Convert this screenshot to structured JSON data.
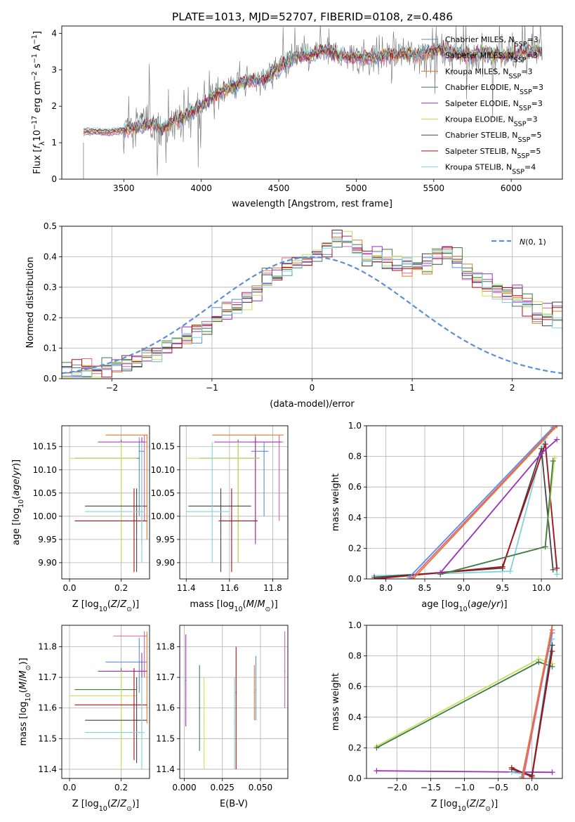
{
  "figure": {
    "title": "PLATE=1013, MJD=52707, FIBERID=0108, z=0.486"
  },
  "colors": {
    "chabrier_miles": "#5b8fd6",
    "salpeter_miles": "#e0609a",
    "kroupa_miles": "#e07a2a",
    "chabrier_elodie": "#3e7a4a",
    "salpeter_elodie": "#9b2fb8",
    "kroupa_elodie": "#c9e05a",
    "chabrier_stelib": "#444444",
    "salpeter_stelib": "#a8101a",
    "kroupa_stelib": "#7fd3dc",
    "data": "#808080",
    "normal": "#5b8fd6"
  },
  "chart_data": [
    {
      "id": "spectrum",
      "type": "line",
      "xlabel": "wavelength [Angstrom, rest frame]",
      "ylabel": "Flux [f_λ 10^-17 erg cm^-2 s^-1 A^-1]",
      "xlim": [
        3100,
        6330
      ],
      "ylim": [
        0,
        4.2
      ],
      "xticks": [
        3500,
        4000,
        4500,
        5000,
        5500,
        6000
      ],
      "yticks": [
        0,
        1,
        2,
        3,
        4
      ],
      "grid": false,
      "legend_position": "top-right",
      "legend": [
        {
          "label": "Chabrier MILES, N",
          "sub": "SSP",
          "tail": "=3",
          "color_key": "chabrier_miles"
        },
        {
          "label": "Salpeter MILES, N",
          "sub": "SSP",
          "tail": "=3",
          "color_key": "salpeter_miles"
        },
        {
          "label": "Kroupa MILES, N",
          "sub": "SSP",
          "tail": "=3",
          "color_key": "kroupa_miles"
        },
        {
          "label": "Chabrier ELODIE, N",
          "sub": "SSP",
          "tail": "=3",
          "color_key": "chabrier_elodie"
        },
        {
          "label": "Salpeter ELODIE, N",
          "sub": "SSP",
          "tail": "=3",
          "color_key": "salpeter_elodie"
        },
        {
          "label": "Kroupa ELODIE, N",
          "sub": "SSP",
          "tail": "=3",
          "color_key": "kroupa_elodie"
        },
        {
          "label": "Chabrier STELIB, N",
          "sub": "SSP",
          "tail": "=5",
          "color_key": "chabrier_stelib"
        },
        {
          "label": "Salpeter STELIB, N",
          "sub": "SSP",
          "tail": "=5",
          "color_key": "salpeter_stelib"
        },
        {
          "label": "Kroupa STELIB, N",
          "sub": "SSP",
          "tail": "=4",
          "color_key": "kroupa_stelib"
        }
      ],
      "model_trend": {
        "x": [
          3240,
          3300,
          3400,
          3500,
          3600,
          3700,
          3750,
          3800,
          3900,
          4000,
          4100,
          4200,
          4300,
          4400,
          4500,
          4600,
          4700,
          4800,
          4900,
          5000,
          5100,
          5200,
          5300,
          5400,
          5500,
          5600,
          5700,
          5800,
          5900,
          6000,
          6100,
          6200
        ],
        "y": [
          1.3,
          1.32,
          1.28,
          1.36,
          1.45,
          1.55,
          1.35,
          1.55,
          1.75,
          2.0,
          2.35,
          2.55,
          2.7,
          2.75,
          3.05,
          3.35,
          3.4,
          3.55,
          3.4,
          3.35,
          3.35,
          3.4,
          3.45,
          3.4,
          3.55,
          3.5,
          3.4,
          3.45,
          3.4,
          3.4,
          3.5,
          3.5
        ]
      }
    },
    {
      "id": "residuals",
      "type": "line",
      "xlabel": "(data-model)/error",
      "ylabel": "Normed distribution",
      "xlim": [
        -2.5,
        2.5
      ],
      "ylim": [
        0,
        0.5
      ],
      "xticks": [
        -2,
        -1,
        0,
        1,
        2
      ],
      "yticks": [
        0.0,
        0.1,
        0.2,
        0.3,
        0.4,
        0.5
      ],
      "grid": true,
      "legend_position": "top-right",
      "legend": [
        {
          "label": "N(0,1)",
          "color_key": "normal",
          "style": "dashed"
        }
      ],
      "bin_width": 0.1,
      "bin_start": -2.5,
      "histogram_envelope": [
        0.02,
        0.02,
        0.03,
        0.03,
        0.04,
        0.04,
        0.05,
        0.06,
        0.07,
        0.08,
        0.1,
        0.12,
        0.14,
        0.16,
        0.18,
        0.2,
        0.22,
        0.24,
        0.27,
        0.3,
        0.32,
        0.34,
        0.36,
        0.38,
        0.4,
        0.41,
        0.44,
        0.46,
        0.45,
        0.42,
        0.4,
        0.4,
        0.39,
        0.37,
        0.37,
        0.36,
        0.38,
        0.41,
        0.42,
        0.39,
        0.36,
        0.33,
        0.31,
        0.29,
        0.28,
        0.26,
        0.24,
        0.22,
        0.21,
        0.2,
        0.18,
        0.17,
        0.17,
        0.15,
        0.13,
        0.12,
        0.11,
        0.1,
        0.09,
        0.08,
        0.07,
        0.06,
        0.06,
        0.05,
        0.05,
        0.04,
        0.04,
        0.04,
        0.03,
        0.03
      ]
    },
    {
      "id": "age_vs_Z",
      "type": "scatter",
      "xlabel": "Z [log10(Z/Z⊙)]",
      "ylabel": "age  [log10(age/yr)]",
      "xlim": [
        -0.03,
        0.31
      ],
      "ylim": [
        9.865,
        10.195
      ],
      "xticks": [
        0.0,
        0.2
      ],
      "yticks": [
        9.9,
        9.95,
        10.0,
        10.05,
        10.1,
        10.15
      ],
      "grid": true,
      "points": [
        {
          "series": "chabrier_miles",
          "x": 0.27,
          "y": 10.14,
          "xerr": [
            0.27,
            0.29
          ],
          "yerr": [
            10.0,
            10.17
          ]
        },
        {
          "series": "salpeter_miles",
          "x": 0.29,
          "y": 10.16,
          "xerr": [
            0.28,
            0.3
          ],
          "yerr": [
            9.99,
            10.175
          ]
        },
        {
          "series": "kroupa_miles",
          "x": 0.3,
          "y": 10.175,
          "xerr": [
            0.14,
            0.3
          ],
          "yerr": [
            9.95,
            10.175
          ]
        },
        {
          "series": "chabrier_elodie",
          "x": 0.2,
          "y": 10.125,
          "xerr": [
            0.02,
            0.27
          ],
          "yerr": [
            9.9,
            10.165
          ]
        },
        {
          "series": "salpeter_elodie",
          "x": 0.28,
          "y": 10.16,
          "xerr": [
            0.11,
            0.29
          ],
          "yerr": [
            9.94,
            10.17
          ]
        },
        {
          "series": "kroupa_elodie",
          "x": 0.2,
          "y": 10.125,
          "xerr": [
            0.0,
            0.26
          ],
          "yerr": [
            9.9,
            10.16
          ]
        },
        {
          "series": "chabrier_stelib",
          "x": 0.26,
          "y": 10.022,
          "xerr": [
            0.06,
            0.3
          ],
          "yerr": [
            9.88,
            10.06
          ]
        },
        {
          "series": "salpeter_stelib",
          "x": 0.25,
          "y": 9.99,
          "xerr": [
            0.02,
            0.3
          ],
          "yerr": [
            9.88,
            10.06
          ]
        },
        {
          "series": "kroupa_stelib",
          "x": 0.28,
          "y": 10.01,
          "xerr": [
            0.06,
            0.29
          ],
          "yerr": [
            9.9,
            10.16
          ]
        }
      ]
    },
    {
      "id": "age_vs_mass",
      "type": "scatter",
      "xlabel": "mass [log10(M/M⊙)]",
      "ylabel": "",
      "xlim": [
        11.37,
        11.87
      ],
      "ylim": [
        9.865,
        10.195
      ],
      "xticks": [
        11.4,
        11.6,
        11.8
      ],
      "yticks": [
        9.9,
        9.95,
        10.0,
        10.05,
        10.1,
        10.15
      ],
      "grid": true,
      "points": [
        {
          "series": "chabrier_miles",
          "x": 11.76,
          "y": 10.14,
          "xerr": [
            11.7,
            11.78
          ],
          "yerr": [
            10.0,
            10.16
          ]
        },
        {
          "series": "salpeter_miles",
          "x": 11.83,
          "y": 10.16,
          "xerr": [
            11.7,
            11.85
          ],
          "yerr": [
            9.99,
            10.175
          ]
        },
        {
          "series": "kroupa_miles",
          "x": 11.72,
          "y": 10.175,
          "xerr": [
            11.52,
            11.85
          ],
          "yerr": [
            9.95,
            10.175
          ]
        },
        {
          "series": "chabrier_elodie",
          "x": 11.64,
          "y": 10.125,
          "xerr": [
            11.46,
            11.74
          ],
          "yerr": [
            9.9,
            10.165
          ]
        },
        {
          "series": "salpeter_elodie",
          "x": 11.72,
          "y": 10.16,
          "xerr": [
            11.53,
            11.84
          ],
          "yerr": [
            9.94,
            10.17
          ]
        },
        {
          "series": "kroupa_elodie",
          "x": 11.64,
          "y": 10.125,
          "xerr": [
            11.4,
            11.74
          ],
          "yerr": [
            9.9,
            10.16
          ]
        },
        {
          "series": "chabrier_stelib",
          "x": 11.56,
          "y": 10.022,
          "xerr": [
            11.41,
            11.7
          ],
          "yerr": [
            9.88,
            10.06
          ]
        },
        {
          "series": "salpeter_stelib",
          "x": 11.61,
          "y": 9.99,
          "xerr": [
            11.55,
            11.73
          ],
          "yerr": [
            9.88,
            10.06
          ]
        },
        {
          "series": "kroupa_stelib",
          "x": 11.52,
          "y": 10.01,
          "xerr": [
            11.4,
            11.6
          ],
          "yerr": [
            9.9,
            10.16
          ]
        }
      ]
    },
    {
      "id": "weight_vs_age",
      "type": "line",
      "xlabel": "age  [log10(age/yr)]",
      "ylabel": "mass weight",
      "xlim": [
        7.75,
        10.27
      ],
      "ylim": [
        0.0,
        1.0
      ],
      "xticks": [
        8.0,
        8.5,
        9.0,
        9.5,
        10.0
      ],
      "yticks": [
        0.0,
        0.2,
        0.4,
        0.6,
        0.8,
        1.0
      ],
      "grid": true,
      "series": [
        {
          "name": "kroupa_stelib",
          "x": [
            7.85,
            9.6,
            10.05,
            10.2
          ],
          "y": [
            0.02,
            0.05,
            0.92,
            0.03
          ]
        },
        {
          "name": "chabrier_stelib",
          "x": [
            7.85,
            9.5,
            10.0,
            10.15
          ],
          "y": [
            0.01,
            0.07,
            0.85,
            0.06
          ]
        },
        {
          "name": "salpeter_stelib",
          "x": [
            7.85,
            9.5,
            10.05,
            10.2
          ],
          "y": [
            0.0,
            0.08,
            0.88,
            0.07
          ]
        },
        {
          "name": "kroupa_elodie",
          "x": [
            8.7,
            10.05,
            10.17
          ],
          "y": [
            0.03,
            0.21,
            0.79
          ]
        },
        {
          "name": "chabrier_elodie",
          "x": [
            8.7,
            10.05,
            10.15
          ],
          "y": [
            0.03,
            0.21,
            0.77
          ]
        },
        {
          "name": "salpeter_elodie",
          "x": [
            8.7,
            10.0,
            10.2
          ],
          "y": [
            0.04,
            0.82,
            0.91
          ]
        },
        {
          "name": "chabrier_miles",
          "x": [
            8.3,
            10.15
          ],
          "y": [
            0.01,
            0.99
          ]
        },
        {
          "name": "salpeter_miles",
          "x": [
            8.32,
            10.17
          ],
          "y": [
            0.0,
            0.99
          ]
        },
        {
          "name": "kroupa_miles",
          "x": [
            8.35,
            10.2
          ],
          "y": [
            0.0,
            1.0
          ]
        }
      ]
    },
    {
      "id": "mass_vs_Z",
      "type": "scatter",
      "xlabel": "Z [log10(Z/Z⊙)]",
      "ylabel": "mass [log10(M/M⊙)]",
      "xlim": [
        -0.03,
        0.31
      ],
      "ylim": [
        11.37,
        11.87
      ],
      "xticks": [
        0.0,
        0.2
      ],
      "yticks": [
        11.4,
        11.5,
        11.6,
        11.7,
        11.8
      ],
      "grid": true,
      "points": [
        {
          "series": "chabrier_miles",
          "x": 0.27,
          "y": 11.75,
          "xerr": [
            0.14,
            0.3
          ],
          "yerr": [
            11.65,
            11.83
          ]
        },
        {
          "series": "salpeter_miles",
          "x": 0.29,
          "y": 11.835,
          "xerr": [
            0.17,
            0.3
          ],
          "yerr": [
            11.7,
            11.85
          ]
        },
        {
          "series": "kroupa_miles",
          "x": 0.3,
          "y": 11.72,
          "xerr": [
            0.14,
            0.3
          ],
          "yerr": [
            11.55,
            11.85
          ]
        },
        {
          "series": "chabrier_elodie",
          "x": 0.2,
          "y": 11.66,
          "xerr": [
            0.02,
            0.26
          ],
          "yerr": [
            11.42,
            11.73
          ]
        },
        {
          "series": "salpeter_elodie",
          "x": 0.28,
          "y": 11.72,
          "xerr": [
            0.11,
            0.3
          ],
          "yerr": [
            11.52,
            11.78
          ]
        },
        {
          "series": "kroupa_elodie",
          "x": 0.2,
          "y": 11.64,
          "xerr": [
            0.0,
            0.26
          ],
          "yerr": [
            11.4,
            11.72
          ]
        },
        {
          "series": "chabrier_stelib",
          "x": 0.26,
          "y": 11.56,
          "xerr": [
            0.06,
            0.3
          ],
          "yerr": [
            11.42,
            11.7
          ]
        },
        {
          "series": "salpeter_stelib",
          "x": 0.25,
          "y": 11.61,
          "xerr": [
            0.02,
            0.3
          ],
          "yerr": [
            11.43,
            11.73
          ]
        },
        {
          "series": "kroupa_stelib",
          "x": 0.28,
          "y": 11.52,
          "xerr": [
            0.06,
            0.29
          ],
          "yerr": [
            11.4,
            11.7
          ]
        }
      ]
    },
    {
      "id": "mass_vs_ebv",
      "type": "scatter",
      "xlabel": "E(B-V)",
      "ylabel": "",
      "xlim": [
        -0.003,
        0.068
      ],
      "ylim": [
        11.37,
        11.87
      ],
      "xticks": [
        0.0,
        0.025,
        0.05
      ],
      "yticks": [
        11.4,
        11.5,
        11.6,
        11.7,
        11.8
      ],
      "grid": true,
      "points": [
        {
          "series": "salpeter_elodie",
          "x": 0.001,
          "y": 11.69,
          "yerr": [
            11.54,
            11.84
          ]
        },
        {
          "series": "chabrier_elodie",
          "x": 0.01,
          "y": 11.6,
          "yerr": [
            11.46,
            11.74
          ]
        },
        {
          "series": "kroupa_elodie",
          "x": 0.013,
          "y": 11.55,
          "yerr": [
            11.4,
            11.7
          ]
        },
        {
          "series": "salpeter_stelib",
          "x": 0.034,
          "y": 11.65,
          "yerr": [
            11.4,
            11.8
          ]
        },
        {
          "series": "kroupa_stelib",
          "x": 0.033,
          "y": 11.55,
          "yerr": [
            11.4,
            11.7
          ]
        },
        {
          "series": "chabrier_miles",
          "x": 0.047,
          "y": 11.66,
          "yerr": [
            11.56,
            11.77
          ]
        },
        {
          "series": "kroupa_miles",
          "x": 0.046,
          "y": 11.65,
          "yerr": [
            11.56,
            11.74
          ]
        },
        {
          "series": "salpeter_miles",
          "x": 0.066,
          "y": 11.72,
          "yerr": [
            11.6,
            11.85
          ]
        }
      ]
    },
    {
      "id": "weight_vs_Z",
      "type": "line",
      "xlabel": "Z [log10(Z/Z⊙)]",
      "ylabel": "mass weight",
      "xlim": [
        -2.45,
        0.45
      ],
      "ylim": [
        0.0,
        1.0
      ],
      "xticks": [
        -2.0,
        -1.5,
        -1.0,
        -0.5,
        0.0
      ],
      "yticks": [
        0.0,
        0.2,
        0.4,
        0.6,
        0.8,
        1.0
      ],
      "grid": true,
      "series": [
        {
          "name": "kroupa_elodie",
          "x": [
            -2.3,
            0.1,
            0.3
          ],
          "y": [
            0.21,
            0.78,
            0.75
          ]
        },
        {
          "name": "chabrier_elodie",
          "x": [
            -2.3,
            0.1,
            0.3
          ],
          "y": [
            0.2,
            0.76,
            0.73
          ]
        },
        {
          "name": "salpeter_elodie",
          "x": [
            -2.3,
            0.3
          ],
          "y": [
            0.05,
            0.04
          ]
        },
        {
          "name": "kroupa_stelib",
          "x": [
            -0.3,
            0.0,
            0.3
          ],
          "y": [
            0.04,
            0.02,
            0.91
          ]
        },
        {
          "name": "chabrier_stelib",
          "x": [
            -0.3,
            0.0,
            0.3
          ],
          "y": [
            0.06,
            0.02,
            0.87
          ]
        },
        {
          "name": "salpeter_stelib",
          "x": [
            -0.3,
            0.0,
            0.3
          ],
          "y": [
            0.07,
            0.01,
            0.83
          ]
        },
        {
          "name": "chabrier_miles",
          "x": [
            -0.15,
            0.3
          ],
          "y": [
            0.01,
            0.95
          ]
        },
        {
          "name": "salpeter_miles",
          "x": [
            -0.13,
            0.3
          ],
          "y": [
            0.0,
            0.97
          ]
        },
        {
          "name": "kroupa_miles",
          "x": [
            -0.15,
            0.3
          ],
          "y": [
            0.0,
            1.0
          ]
        }
      ]
    }
  ]
}
